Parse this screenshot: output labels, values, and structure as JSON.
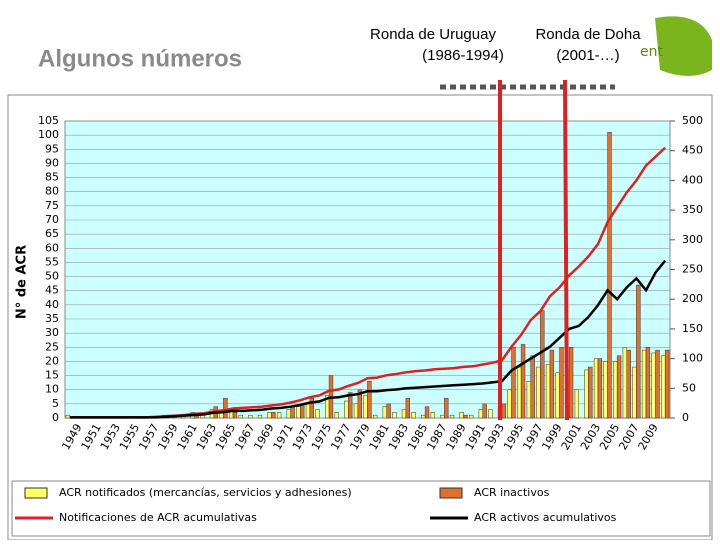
{
  "chart_data": {
    "type": "bar",
    "title": "Algunos números",
    "y_label": "N° de ACR",
    "logo": "ent",
    "annotations": [
      [
        "Ronda de Uruguay",
        "(1986-1994)"
      ],
      [
        "Ronda de Doha",
        "(2001-…)"
      ]
    ],
    "categories": [
      null,
      "1949",
      null,
      "1951",
      null,
      "1953",
      null,
      "1955",
      null,
      "1957",
      null,
      "1959",
      null,
      "1961",
      null,
      "1963",
      null,
      "1965",
      null,
      "1967",
      null,
      "1969",
      null,
      "1971",
      null,
      "1973",
      null,
      "1975",
      null,
      "1977",
      null,
      "1979",
      null,
      "1981",
      null,
      "1983",
      null,
      "1985",
      null,
      "1987",
      null,
      "1989",
      null,
      "1991",
      null,
      "1993",
      null,
      "1995",
      null,
      "1997",
      null,
      "1999",
      null,
      "2001",
      null,
      "2003",
      null,
      "2005",
      null,
      "2007",
      null,
      "2009",
      null
    ],
    "series": [
      {
        "name": "ACR notificados (mercancías, servicios y adhesiones)",
        "color": "#ffff66",
        "kind": "bar",
        "values": [
          1,
          0,
          0,
          0,
          0,
          0,
          0,
          0,
          0,
          0,
          1,
          1,
          1,
          2,
          1,
          3,
          2,
          3,
          1,
          1,
          1,
          2,
          2,
          3,
          4,
          5,
          3,
          8,
          2,
          6,
          5,
          8,
          1,
          4,
          2,
          3,
          2,
          1,
          2,
          1,
          1,
          2,
          1,
          3,
          3,
          4,
          10,
          18,
          13,
          18,
          19,
          16,
          17,
          10,
          17,
          21,
          20,
          20,
          25,
          18,
          24,
          23,
          22
        ]
      },
      {
        "name": "ACR inactivos",
        "color": "#e07030",
        "kind": "bar",
        "values": [
          0,
          0,
          0,
          0,
          0,
          0,
          0,
          0,
          0,
          0,
          1,
          0,
          0,
          1,
          0,
          4,
          7,
          2,
          0,
          0,
          0,
          2,
          0,
          4,
          5,
          7,
          0,
          15,
          0,
          9,
          10,
          13,
          0,
          5,
          0,
          7,
          0,
          4,
          0,
          7,
          0,
          1,
          0,
          5,
          0,
          5,
          25,
          26,
          22,
          38,
          24,
          25,
          25,
          0,
          18,
          21,
          101,
          22,
          24,
          47,
          25,
          24,
          24
        ]
      },
      {
        "name": "Notificaciones de ACR acumulativas",
        "color": "#e02020",
        "kind": "line",
        "axis": "y2",
        "values": [
          1,
          1,
          1,
          1,
          1,
          1,
          1,
          1,
          1,
          2,
          3,
          4,
          5,
          7,
          8,
          11,
          13,
          16,
          17,
          18,
          19,
          21,
          23,
          26,
          30,
          35,
          38,
          46,
          48,
          54,
          59,
          67,
          68,
          72,
          74,
          77,
          79,
          80,
          82,
          83,
          84,
          86,
          87,
          90,
          93,
          97,
          120,
          140,
          165,
          180,
          205,
          220,
          240,
          255,
          272,
          293,
          330,
          355,
          380,
          400,
          425,
          440,
          455
        ]
      },
      {
        "name": "ACR activos acumulativos",
        "color": "#000000",
        "kind": "line",
        "axis": "y2",
        "values": [
          1,
          1,
          1,
          1,
          1,
          1,
          1,
          1,
          1,
          1,
          2,
          3,
          4,
          5,
          6,
          9,
          10,
          12,
          12,
          13,
          14,
          16,
          17,
          19,
          22,
          26,
          28,
          34,
          35,
          38,
          40,
          45,
          45,
          47,
          48,
          50,
          51,
          52,
          53,
          54,
          55,
          56,
          57,
          58,
          60,
          62,
          80,
          90,
          100,
          110,
          120,
          135,
          150,
          155,
          170,
          190,
          215,
          200,
          220,
          235,
          215,
          245,
          265
        ]
      }
    ],
    "ylim": [
      0,
      105
    ],
    "yticks": [
      0,
      5,
      10,
      15,
      20,
      25,
      30,
      35,
      40,
      45,
      50,
      55,
      60,
      65,
      70,
      75,
      80,
      85,
      90,
      95,
      100,
      105
    ],
    "y2lim": [
      0,
      500
    ],
    "y2ticks": [
      0,
      50,
      100,
      150,
      200,
      250,
      300,
      350,
      400,
      450,
      500
    ],
    "grid": true
  }
}
